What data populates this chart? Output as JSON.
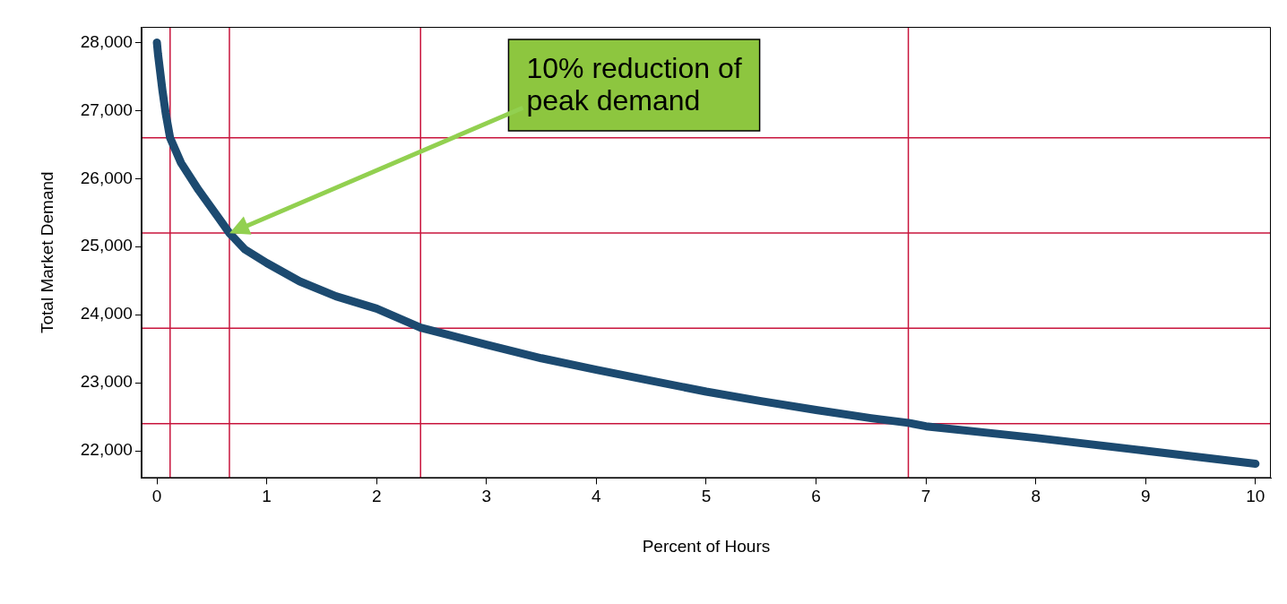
{
  "chart_data": {
    "type": "line",
    "xlabel": "Percent of Hours",
    "ylabel": "Total Market Demand",
    "x": [
      0,
      0.01,
      0.05,
      0.08,
      0.12,
      0.22,
      0.38,
      0.55,
      0.66,
      0.8,
      1.0,
      1.3,
      1.63,
      2.0,
      2.4,
      3.0,
      3.5,
      4.0,
      4.5,
      5.0,
      5.5,
      6.0,
      6.5,
      6.84,
      7.0,
      8.0,
      9.0,
      10.0
    ],
    "series": [
      {
        "color": "#1c4a70",
        "values": [
          28000,
          27830,
          27300,
          26960,
          26600,
          26230,
          25830,
          25450,
          25200,
          24960,
          24760,
          24490,
          24270,
          24090,
          23810,
          23560,
          23360,
          23190,
          23030,
          22870,
          22730,
          22600,
          22480,
          22410,
          22360,
          22190,
          22000,
          21810
        ]
      }
    ],
    "xlim": [
      -0.14,
      10.14
    ],
    "xticks": [
      0,
      1,
      2,
      3,
      4,
      5,
      6,
      7,
      8,
      9,
      10
    ],
    "ylim": [
      21600,
      28230
    ],
    "yticks": [
      {
        "value": 22000,
        "label": "22,000"
      },
      {
        "value": 23000,
        "label": "23,000"
      },
      {
        "value": 24000,
        "label": "24,000"
      },
      {
        "value": 25000,
        "label": "25,000"
      },
      {
        "value": 26000,
        "label": "26,000"
      },
      {
        "value": 27000,
        "label": "27,000"
      },
      {
        "value": 28000,
        "label": "28,000"
      }
    ],
    "ref_lines": [
      {
        "axis": "x",
        "value": 0.12,
        "color": "#c8143c"
      },
      {
        "axis": "x",
        "value": 0.66,
        "color": "#c8143c"
      },
      {
        "axis": "x",
        "value": 2.4,
        "color": "#c8143c"
      },
      {
        "axis": "x",
        "value": 6.84,
        "color": "#c8143c"
      },
      {
        "axis": "y",
        "value": 26600,
        "color": "#c8143c"
      },
      {
        "axis": "y",
        "value": 25200,
        "color": "#c8143c"
      },
      {
        "axis": "y",
        "value": 23800,
        "color": "#c8143c"
      },
      {
        "axis": "y",
        "value": 22400,
        "color": "#c8143c"
      }
    ],
    "annotations": [
      "10% reduction of peak demand"
    ],
    "grid": false,
    "legend": false,
    "marker": "none",
    "line_style": "solid"
  }
}
